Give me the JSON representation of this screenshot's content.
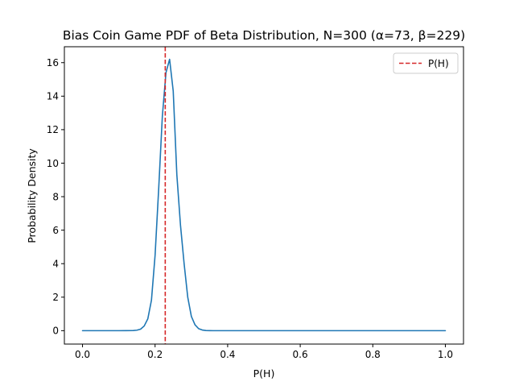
{
  "chart_data": {
    "type": "line",
    "title": "Bias Coin Game PDF of Beta Distribution, N=300 (α=73, β=229)",
    "xlabel": "P(H)",
    "ylabel": "Probability Density",
    "xlim": [
      -0.05,
      1.05
    ],
    "ylim": [
      -0.8,
      16.95
    ],
    "xticks": [
      0.0,
      0.2,
      0.4,
      0.6,
      0.8,
      1.0
    ],
    "xtick_labels": [
      "0.0",
      "0.2",
      "0.4",
      "0.6",
      "0.8",
      "1.0"
    ],
    "yticks": [
      0,
      2,
      4,
      6,
      8,
      10,
      12,
      14,
      16
    ],
    "ytick_labels": [
      "0",
      "2",
      "4",
      "6",
      "8",
      "10",
      "12",
      "14",
      "16"
    ],
    "grid": false,
    "legend_position": "upper right",
    "series": [
      {
        "name": "",
        "color": "#1f77b4",
        "style": "solid",
        "x": [
          0.0,
          0.02,
          0.04,
          0.06,
          0.08,
          0.1,
          0.12,
          0.14,
          0.15,
          0.16,
          0.17,
          0.18,
          0.19,
          0.2,
          0.21,
          0.22,
          0.23,
          0.24,
          0.25,
          0.26,
          0.27,
          0.28,
          0.29,
          0.3,
          0.31,
          0.32,
          0.33,
          0.34,
          0.35,
          0.36,
          0.38,
          0.4,
          0.5,
          0.6,
          0.7,
          0.8,
          0.9,
          1.0
        ],
        "y": [
          0,
          0,
          0,
          0,
          0,
          0,
          0.0003,
          0.008,
          0.03,
          0.09,
          0.28,
          0.71,
          1.82,
          4.5,
          8.5,
          12.8,
          15.4,
          16.2,
          14.3,
          9.3,
          6.3,
          4.0,
          2.0,
          0.85,
          0.35,
          0.12,
          0.04,
          0.01,
          0.003,
          0,
          0,
          0,
          0,
          0,
          0,
          0,
          0,
          0
        ]
      },
      {
        "name": "P(H)",
        "color": "#d62728",
        "style": "dashed",
        "vline_x": 0.228
      }
    ]
  }
}
